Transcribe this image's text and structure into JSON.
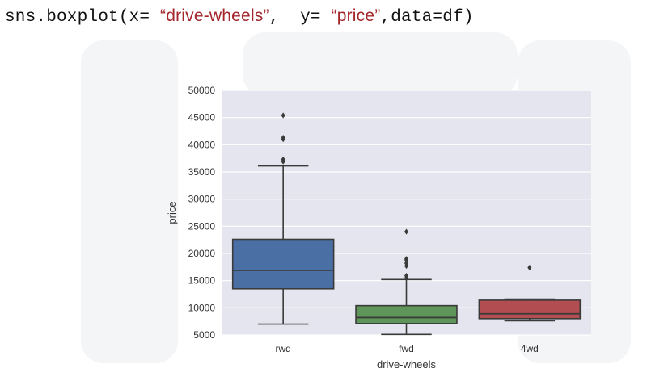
{
  "code": {
    "prefix": "sns.boxplot(x= ",
    "x_string": "“drive-wheels”",
    "middle": ",  y= ",
    "y_string": "“price”",
    "suffix": ",data=df)"
  },
  "colors": {
    "plot_background": "#e5e5ef",
    "grid": "#ffffff",
    "rwd": "#4a6fa5",
    "fwd": "#5d9658",
    "4wd": "#b24d52",
    "line": "#3a3a3a"
  },
  "chart_data": {
    "type": "boxplot",
    "title": "",
    "xlabel": "drive-wheels",
    "ylabel": "price",
    "ylim": [
      5000,
      50000
    ],
    "yticks": [
      5000,
      10000,
      15000,
      20000,
      25000,
      30000,
      35000,
      40000,
      45000,
      50000
    ],
    "grid": true,
    "categories": [
      "rwd",
      "fwd",
      "4wd"
    ],
    "boxes": [
      {
        "category": "rwd",
        "whisker_low": 7000,
        "q1": 13500,
        "median": 16900,
        "q3": 22600,
        "whisker_high": 36100,
        "outliers": [
          36900,
          37000,
          37300,
          41000,
          41300,
          45400
        ]
      },
      {
        "category": "fwd",
        "whisker_low": 5100,
        "q1": 7100,
        "median": 8200,
        "q3": 10400,
        "whisker_high": 15200,
        "outliers": [
          15500,
          15900,
          17700,
          18200,
          18800,
          19000,
          24000
        ]
      },
      {
        "category": "4wd",
        "whisker_low": 7600,
        "q1": 8000,
        "median": 8900,
        "q3": 11400,
        "whisker_high": 11600,
        "outliers": [
          17400
        ]
      }
    ]
  }
}
